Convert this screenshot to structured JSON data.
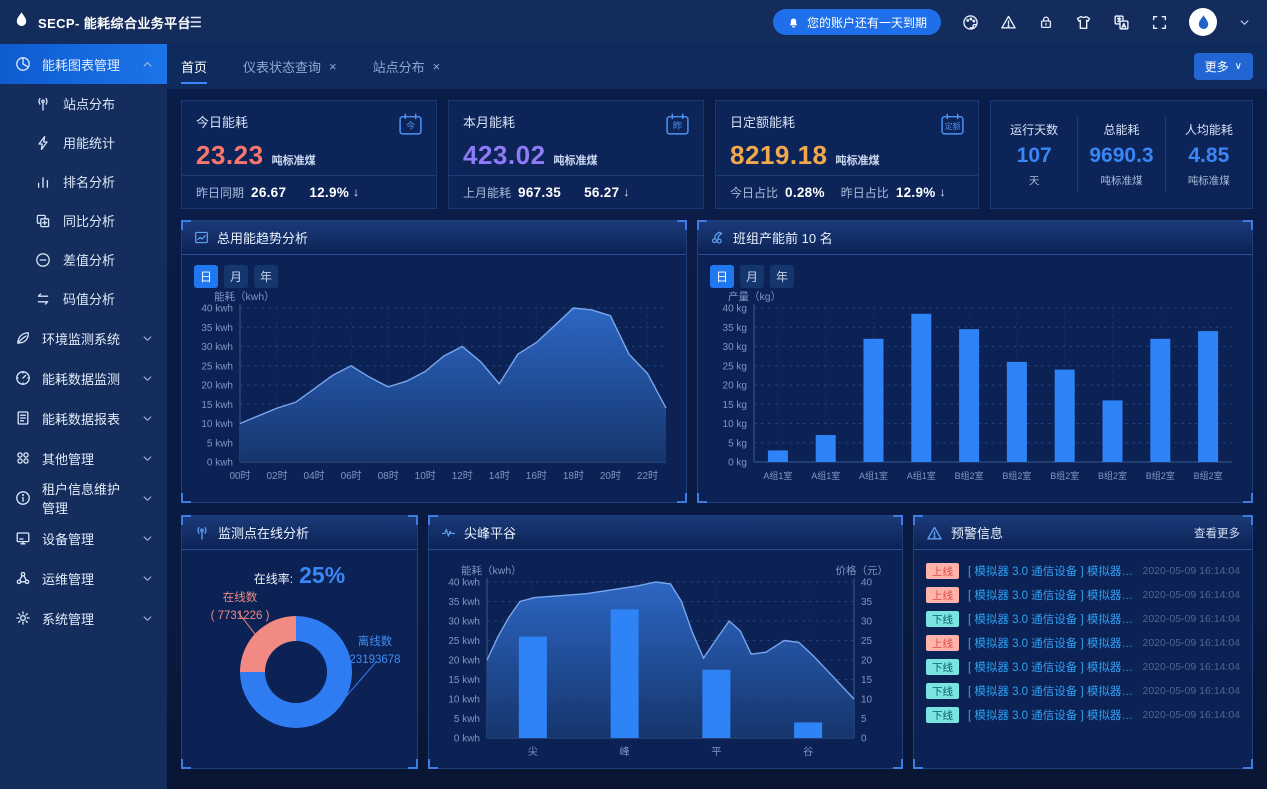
{
  "brand": {
    "title": "SECP- 能耗综合业务平台",
    "logo_icon": "flame-drop"
  },
  "topbar": {
    "menu_icon": "menu",
    "notification": {
      "icon": "bell",
      "text": "您的账户还有一天到期"
    },
    "action_icons": [
      "palette",
      "warning",
      "lock",
      "shirt",
      "translate",
      "fullscreen"
    ],
    "avatar_icon": "flame-drop",
    "user_chevron": "chevron-down"
  },
  "tabbar": {
    "tabs": [
      {
        "label": "首页",
        "active": true,
        "closable": false
      },
      {
        "label": "仪表状态查询",
        "active": false,
        "closable": true
      },
      {
        "label": "站点分布",
        "active": false,
        "closable": true
      }
    ],
    "close_glyph": "×",
    "more_button": {
      "label": "更多",
      "chevron": "∨"
    }
  },
  "sidebar": {
    "groups": [
      {
        "label": "能耗图表管理",
        "icon": "pie",
        "expanded": true,
        "active": true,
        "children": [
          {
            "label": "站点分布",
            "icon": "antenna"
          },
          {
            "label": "用能统计",
            "icon": "bolt"
          },
          {
            "label": "排名分析",
            "icon": "rank"
          },
          {
            "label": "同比分析",
            "icon": "compare"
          },
          {
            "label": "差值分析",
            "icon": "minus-circle"
          },
          {
            "label": "码值分析",
            "icon": "swap"
          }
        ]
      },
      {
        "label": "环境监测系统",
        "icon": "leaf",
        "expanded": false
      },
      {
        "label": "能耗数据监测",
        "icon": "gauge",
        "expanded": false
      },
      {
        "label": "能耗数据报表",
        "icon": "report",
        "expanded": false
      },
      {
        "label": "其他管理",
        "icon": "grid",
        "expanded": false
      },
      {
        "label": "租户信息维护管理",
        "icon": "info",
        "expanded": false
      },
      {
        "label": "设备管理",
        "icon": "device",
        "expanded": false
      },
      {
        "label": "运维管理",
        "icon": "ops",
        "expanded": false
      },
      {
        "label": "系统管理",
        "icon": "gear",
        "expanded": false
      }
    ]
  },
  "stat_cards": [
    {
      "title": "今日能耗",
      "value": "23.23",
      "unit": "吨标准煤",
      "value_color": "#f9776e",
      "badge": "今",
      "footer": [
        {
          "label": "昨日同期",
          "value": "26.67",
          "arrow": false
        },
        {
          "label": "",
          "value": "12.9%",
          "arrow": true
        }
      ]
    },
    {
      "title": "本月能耗",
      "value": "423.02",
      "unit": "吨标准煤",
      "value_color": "#8d7bf7",
      "badge": "昨",
      "footer": [
        {
          "label": "上月能耗",
          "value": "967.35",
          "arrow": false
        },
        {
          "label": "",
          "value": "56.27",
          "arrow": true
        }
      ]
    },
    {
      "title": "日定额能耗",
      "value": "8219.18",
      "unit": "吨标准煤",
      "value_color": "#f2a94d",
      "badge": "定额",
      "footer": [
        {
          "label": "今日占比",
          "value": "0.28%",
          "arrow": false
        },
        {
          "label": "昨日占比",
          "value": "12.9%",
          "arrow": true
        }
      ]
    }
  ],
  "summary_panel": {
    "items": [
      {
        "label": "运行天数",
        "value": "107",
        "unit": "天"
      },
      {
        "label": "总能耗",
        "value": "9690.3",
        "unit": "吨标准煤"
      },
      {
        "label": "人均能耗",
        "value": "4.85",
        "unit": "吨标准煤"
      }
    ]
  },
  "chart_data": [
    {
      "id": "trend",
      "type": "area",
      "title": "总用能趋势分析",
      "icon": "line-chart",
      "toggles": [
        "日",
        "月",
        "年"
      ],
      "active_toggle": "日",
      "ylabel": "能耗（kwh）",
      "ylim": [
        0,
        40
      ],
      "ystep": 5,
      "ytick_suffix": " kwh",
      "grid": true,
      "xtick_labels": [
        "00时",
        "02时",
        "04时",
        "06时",
        "08时",
        "10时",
        "12时",
        "14时",
        "16时",
        "18时",
        "20时",
        "22时"
      ],
      "values": [
        10,
        12,
        14,
        15.5,
        19,
        22.5,
        25,
        22,
        19.5,
        21,
        23.5,
        27.5,
        30,
        26,
        20.3,
        28,
        31,
        35.5,
        40,
        39.5,
        38,
        28,
        23,
        14
      ]
    },
    {
      "id": "team",
      "type": "bar",
      "title": "班组产能前 10 名",
      "icon": "cherry",
      "toggles": [
        "日",
        "月",
        "年"
      ],
      "active_toggle": "日",
      "ylabel": "产量（kg）",
      "ylim": [
        0,
        40
      ],
      "ystep": 5,
      "ytick_suffix": " kg",
      "grid": true,
      "categories": [
        "A组1室",
        "A组1室",
        "A组1室",
        "A组1室",
        "B组2室",
        "B组2室",
        "B组2室",
        "B组2室",
        "B组2室",
        "B组2室"
      ],
      "values": [
        3,
        7,
        32,
        38.5,
        34.5,
        26,
        24,
        16,
        32,
        34
      ],
      "bar_color": "#2e83f6"
    },
    {
      "id": "online",
      "type": "donut",
      "title": "监测点在线分析",
      "icon": "antenna",
      "rate_label": "在线率:",
      "rate_value": "25%",
      "slices": [
        {
          "name": "在线数",
          "value": 7731226,
          "value_label": "( 7731226 )",
          "pct": 25,
          "color": "#f08a82"
        },
        {
          "name": "离线数",
          "value": 23193678,
          "value_label": "23193678",
          "pct": 75,
          "color": "#2f7bf2"
        }
      ]
    },
    {
      "id": "peak",
      "type": "bar-line",
      "title": "尖峰平谷",
      "icon": "pulse",
      "ylabel_left": "能耗（kwh）",
      "ylabel_right": "价格（元）",
      "ylim": [
        0,
        40
      ],
      "ystep": 5,
      "ytick_suffix_left": " kwh",
      "grid": true,
      "categories": [
        "尖",
        "峰",
        "平",
        "谷"
      ],
      "bar_values": [
        26,
        33,
        17.5,
        4
      ],
      "bar_color": "#2e83f6",
      "line_points": [
        [
          0,
          20
        ],
        [
          3,
          26
        ],
        [
          6,
          31
        ],
        [
          9,
          35
        ],
        [
          13,
          36
        ],
        [
          20,
          36.5
        ],
        [
          27,
          37
        ],
        [
          34,
          38
        ],
        [
          41,
          39
        ],
        [
          46,
          40
        ],
        [
          50,
          39.5
        ],
        [
          53,
          35
        ],
        [
          56,
          27
        ],
        [
          59,
          20.5
        ],
        [
          63,
          26
        ],
        [
          66,
          30
        ],
        [
          69,
          27.5
        ],
        [
          72,
          21.5
        ],
        [
          76,
          22
        ],
        [
          81,
          25
        ],
        [
          85,
          24.5
        ],
        [
          89,
          21
        ],
        [
          93,
          17
        ],
        [
          96,
          14
        ],
        [
          100,
          10
        ]
      ]
    }
  ],
  "alerts": {
    "title": "预警信息",
    "icon": "warning",
    "more_label": "查看更多",
    "status_styles": {
      "上线": {
        "bg": "#ffb3aa",
        "fg": "#dc4a41"
      },
      "下线": {
        "bg": "#7be4e0",
        "fg": "#0b636b"
      }
    },
    "rows": [
      {
        "status": "上线",
        "message": "[ 模拟器 3.0 通信设备 ] 模拟器 3.0...",
        "time": "2020-05-09 16:14:04"
      },
      {
        "status": "上线",
        "message": "[ 模拟器 3.0 通信设备 ] 模拟器 3.0...",
        "time": "2020-05-09 16:14:04"
      },
      {
        "status": "下线",
        "message": "[ 模拟器 3.0 通信设备 ] 模拟器 3.0...",
        "time": "2020-05-09 16:14:04"
      },
      {
        "status": "上线",
        "message": "[ 模拟器 3.0 通信设备 ] 模拟器 3.0...",
        "time": "2020-05-09 16:14:04"
      },
      {
        "status": "下线",
        "message": "[ 模拟器 3.0 通信设备 ] 模拟器 3.0...",
        "time": "2020-05-09 16:14:04"
      },
      {
        "status": "下线",
        "message": "[ 模拟器 3.0 通信设备 ] 模拟器 3.0...",
        "time": "2020-05-09 16:14:04"
      },
      {
        "status": "下线",
        "message": "[ 模拟器 3.0 通信设备 ] 模拟器 3.0...",
        "time": "2020-05-09 16:14:04"
      }
    ]
  },
  "colors": {
    "accent_blue": "#2e83f6",
    "value_blue": "#3b86f5",
    "today_value": "#f9776e",
    "month_value": "#8d7bf7",
    "quota_value": "#f2a94d",
    "online_pink": "#f08a82",
    "offline_blue": "#2f7bf2",
    "area_line": "#7aa6ee",
    "alert_text": "#2f9ff0"
  }
}
